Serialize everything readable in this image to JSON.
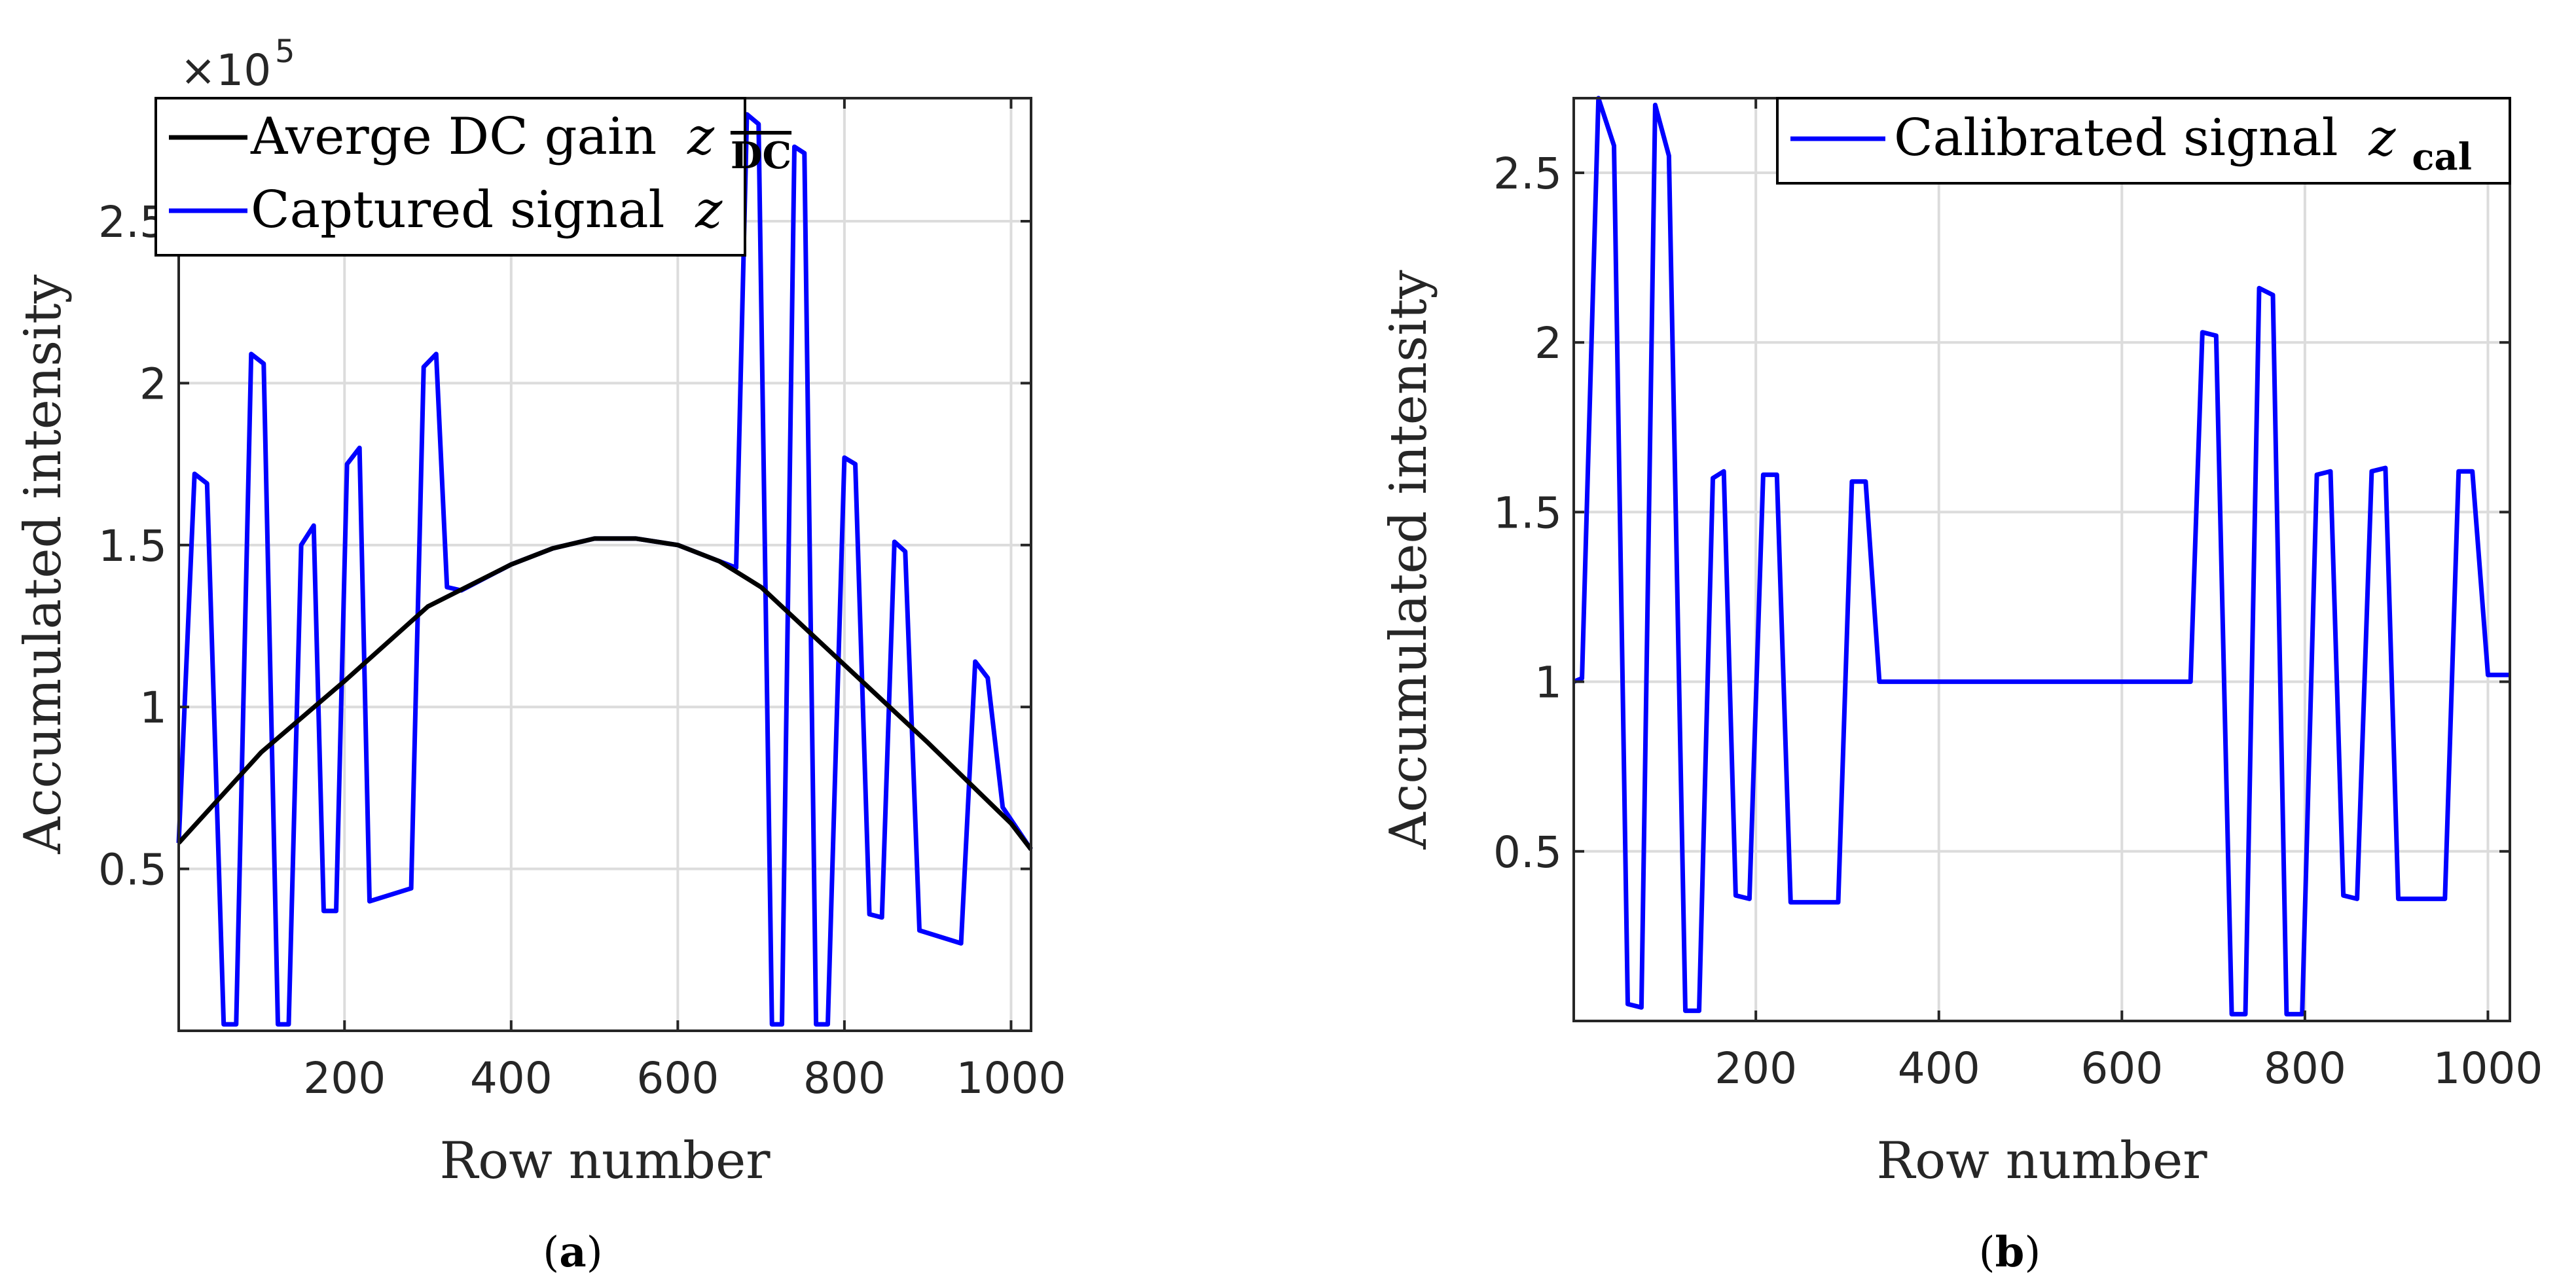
{
  "chart_data": [
    {
      "type": "line",
      "panel_caption": "a",
      "xlabel": "Row number",
      "ylabel": "Accumulated intensity",
      "y_multiplier": "×10",
      "y_multiplier_exp": "5",
      "xlim": [
        1,
        1024
      ],
      "ylim": [
        0,
        2.88
      ],
      "xticks": [
        200,
        400,
        600,
        800,
        1000
      ],
      "yticks": [
        0.5,
        1,
        1.5,
        2,
        2.5
      ],
      "xtick_labels": [
        "200",
        "400",
        "600",
        "800",
        "1000"
      ],
      "ytick_labels": [
        "0.5",
        "1",
        "1.5",
        "2",
        "2.5"
      ],
      "grid": true,
      "legend_position": "top-left",
      "series": [
        {
          "name": "Averge DC gain",
          "symbol": "z",
          "subscript": "DC",
          "color": "#000000",
          "points": [
            [
              1,
              0.58
            ],
            [
              100,
              0.86
            ],
            [
              200,
              1.08
            ],
            [
              300,
              1.31
            ],
            [
              400,
              1.44
            ],
            [
              450,
              1.49
            ],
            [
              500,
              1.52
            ],
            [
              550,
              1.52
            ],
            [
              600,
              1.5
            ],
            [
              650,
              1.45
            ],
            [
              700,
              1.37
            ],
            [
              800,
              1.13
            ],
            [
              900,
              0.89
            ],
            [
              1000,
              0.64
            ],
            [
              1024,
              0.56
            ]
          ]
        },
        {
          "name": "Captured signal",
          "symbol": "z",
          "color": "#0000ff",
          "points": [
            [
              1,
              0.58
            ],
            [
              20,
              1.72
            ],
            [
              35,
              1.69
            ],
            [
              55,
              0.02
            ],
            [
              70,
              0.02
            ],
            [
              88,
              2.09
            ],
            [
              103,
              2.06
            ],
            [
              120,
              0.02
            ],
            [
              133,
              0.02
            ],
            [
              148,
              1.5
            ],
            [
              163,
              1.56
            ],
            [
              175,
              0.37
            ],
            [
              190,
              0.37
            ],
            [
              203,
              1.75
            ],
            [
              218,
              1.8
            ],
            [
              230,
              0.4
            ],
            [
              280,
              0.44
            ],
            [
              295,
              2.05
            ],
            [
              310,
              2.09
            ],
            [
              323,
              1.37
            ],
            [
              340,
              1.36
            ],
            [
              400,
              1.44
            ],
            [
              450,
              1.49
            ],
            [
              500,
              1.52
            ],
            [
              550,
              1.52
            ],
            [
              600,
              1.5
            ],
            [
              650,
              1.45
            ],
            [
              670,
              1.43
            ],
            [
              683,
              2.83
            ],
            [
              697,
              2.8
            ],
            [
              713,
              0.02
            ],
            [
              725,
              0.02
            ],
            [
              740,
              2.73
            ],
            [
              752,
              2.71
            ],
            [
              766,
              0.02
            ],
            [
              780,
              0.02
            ],
            [
              800,
              1.77
            ],
            [
              813,
              1.75
            ],
            [
              830,
              0.36
            ],
            [
              845,
              0.35
            ],
            [
              860,
              1.51
            ],
            [
              873,
              1.48
            ],
            [
              890,
              0.31
            ],
            [
              940,
              0.27
            ],
            [
              957,
              1.14
            ],
            [
              972,
              1.09
            ],
            [
              990,
              0.69
            ],
            [
              1024,
              0.56
            ]
          ]
        }
      ]
    },
    {
      "type": "line",
      "panel_caption": "b",
      "xlabel": "Row number",
      "ylabel": "Accumulated intensity",
      "xlim": [
        1,
        1024
      ],
      "ylim": [
        0,
        2.72
      ],
      "xticks": [
        200,
        400,
        600,
        800,
        1000
      ],
      "yticks": [
        0.5,
        1,
        1.5,
        2,
        2.5
      ],
      "xtick_labels": [
        "200",
        "400",
        "600",
        "800",
        "1000"
      ],
      "ytick_labels": [
        "0.5",
        "1",
        "1.5",
        "2",
        "2.5"
      ],
      "grid": true,
      "legend_position": "top-right",
      "series": [
        {
          "name": "Calibrated signal",
          "symbol": "z",
          "subscript": "cal",
          "color": "#0000ff",
          "points": [
            [
              1,
              1.0
            ],
            [
              10,
              1.01
            ],
            [
              28,
              2.72
            ],
            [
              45,
              2.58
            ],
            [
              60,
              0.05
            ],
            [
              75,
              0.04
            ],
            [
              90,
              2.7
            ],
            [
              105,
              2.55
            ],
            [
              123,
              0.03
            ],
            [
              138,
              0.03
            ],
            [
              153,
              1.6
            ],
            [
              165,
              1.62
            ],
            [
              178,
              0.37
            ],
            [
              193,
              0.36
            ],
            [
              208,
              1.61
            ],
            [
              223,
              1.61
            ],
            [
              238,
              0.35
            ],
            [
              290,
              0.35
            ],
            [
              305,
              1.59
            ],
            [
              320,
              1.59
            ],
            [
              335,
              1.0
            ],
            [
              500,
              1.0
            ],
            [
              675,
              1.0
            ],
            [
              688,
              2.03
            ],
            [
              703,
              2.02
            ],
            [
              720,
              0.02
            ],
            [
              735,
              0.02
            ],
            [
              750,
              2.16
            ],
            [
              765,
              2.14
            ],
            [
              780,
              0.02
            ],
            [
              797,
              0.02
            ],
            [
              813,
              1.61
            ],
            [
              828,
              1.62
            ],
            [
              842,
              0.37
            ],
            [
              857,
              0.36
            ],
            [
              873,
              1.62
            ],
            [
              888,
              1.63
            ],
            [
              902,
              0.36
            ],
            [
              953,
              0.36
            ],
            [
              968,
              1.62
            ],
            [
              983,
              1.62
            ],
            [
              1000,
              1.02
            ],
            [
              1024,
              1.02
            ]
          ]
        }
      ]
    }
  ]
}
